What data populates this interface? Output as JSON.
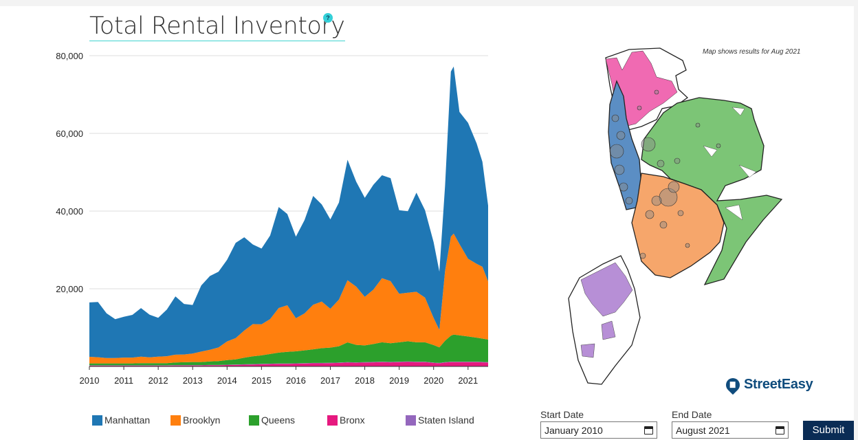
{
  "title": "Total Rental Inventory",
  "help_symbol": "?",
  "map_note": "Map shows results for Aug 2021",
  "brand": "StreetEasy",
  "form": {
    "start_label": "Start Date",
    "start_value": "January 2010",
    "end_label": "End Date",
    "end_value": "August 2021",
    "submit_label": "Submit"
  },
  "colors": {
    "manhattan": "#1f77b4",
    "brooklyn": "#ff7f0e",
    "queens": "#2ca02c",
    "bronx": "#e6197f",
    "staten_island": "#9467bd"
  },
  "chart_data": {
    "type": "area",
    "stacked": true,
    "title": "Total Rental Inventory",
    "xlabel": "",
    "ylabel": "",
    "xlim": [
      "2010-01",
      "2021-08"
    ],
    "ylim": [
      0,
      80000
    ],
    "yticks": [
      "20,000",
      "40,000",
      "60,000",
      "80,000"
    ],
    "xticks": [
      "2010",
      "2011",
      "2012",
      "2013",
      "2014",
      "2015",
      "2016",
      "2017",
      "2018",
      "2019",
      "2020",
      "2021"
    ],
    "grid": true,
    "legend_position": "bottom",
    "x": [
      "2010-01",
      "2010-04",
      "2010-07",
      "2010-10",
      "2011-01",
      "2011-04",
      "2011-07",
      "2011-10",
      "2012-01",
      "2012-04",
      "2012-07",
      "2012-10",
      "2013-01",
      "2013-04",
      "2013-07",
      "2013-10",
      "2014-01",
      "2014-04",
      "2014-07",
      "2014-10",
      "2015-01",
      "2015-04",
      "2015-07",
      "2015-10",
      "2016-01",
      "2016-04",
      "2016-07",
      "2016-10",
      "2017-01",
      "2017-04",
      "2017-07",
      "2017-10",
      "2018-01",
      "2018-04",
      "2018-07",
      "2018-10",
      "2019-01",
      "2019-04",
      "2019-07",
      "2019-10",
      "2020-01",
      "2020-03",
      "2020-05",
      "2020-07",
      "2020-08",
      "2020-10",
      "2021-01",
      "2021-04",
      "2021-06",
      "2021-08"
    ],
    "series": [
      {
        "name": "Bronx",
        "values": [
          200,
          200,
          200,
          200,
          200,
          200,
          200,
          200,
          200,
          200,
          250,
          250,
          250,
          250,
          300,
          300,
          350,
          400,
          450,
          500,
          550,
          600,
          650,
          650,
          700,
          750,
          800,
          800,
          850,
          900,
          1000,
          950,
          1000,
          1050,
          1100,
          1050,
          1100,
          1150,
          1100,
          1100,
          900,
          800,
          1000,
          1100,
          1100,
          1100,
          1100,
          1100,
          1050,
          1000
        ]
      },
      {
        "name": "Staten Island",
        "values": [
          80,
          80,
          80,
          80,
          80,
          80,
          80,
          80,
          80,
          80,
          80,
          80,
          80,
          80,
          80,
          80,
          100,
          100,
          100,
          100,
          100,
          100,
          100,
          100,
          100,
          100,
          100,
          100,
          100,
          100,
          100,
          100,
          120,
          120,
          120,
          120,
          120,
          120,
          120,
          120,
          100,
          100,
          120,
          120,
          120,
          120,
          120,
          120,
          120,
          120
        ]
      },
      {
        "name": "Queens",
        "values": [
          500,
          500,
          500,
          500,
          500,
          500,
          550,
          550,
          550,
          550,
          700,
          750,
          800,
          800,
          900,
          1000,
          1200,
          1300,
          1700,
          2000,
          2200,
          2500,
          2800,
          3000,
          3100,
          3300,
          3500,
          3800,
          3900,
          4200,
          5100,
          4500,
          4300,
          4600,
          5000,
          4800,
          5000,
          5200,
          5000,
          5000,
          4500,
          4000,
          5500,
          6700,
          7000,
          6800,
          6500,
          6200,
          6000,
          5800
        ]
      },
      {
        "name": "Brooklyn",
        "values": [
          1700,
          1600,
          1400,
          1400,
          1500,
          1500,
          1700,
          1500,
          1700,
          1800,
          2000,
          2000,
          2200,
          2700,
          3000,
          3500,
          4800,
          5500,
          7000,
          8300,
          8000,
          9000,
          11500,
          12000,
          8500,
          9500,
          11500,
          12000,
          10000,
          12000,
          16000,
          15000,
          12500,
          14000,
          16500,
          16000,
          12500,
          12500,
          13000,
          11500,
          7000,
          4500,
          18000,
          25500,
          26000,
          23500,
          20000,
          19000,
          18500,
          15000
        ]
      },
      {
        "name": "Manhattan",
        "values": [
          14000,
          14200,
          11500,
          10000,
          10500,
          11000,
          12500,
          11000,
          10000,
          12000,
          15000,
          13000,
          12500,
          17000,
          19000,
          19500,
          21000,
          24500,
          24000,
          20500,
          19500,
          21500,
          26000,
          23500,
          21000,
          24000,
          28000,
          25000,
          23000,
          25000,
          31000,
          27000,
          25500,
          27000,
          26500,
          26500,
          21500,
          21000,
          25500,
          22500,
          19500,
          15000,
          22000,
          42500,
          43000,
          34000,
          35000,
          31000,
          27000,
          19500
        ]
      }
    ]
  },
  "legend": [
    "Manhattan",
    "Brooklyn",
    "Queens",
    "Bronx",
    "Staten Island"
  ]
}
